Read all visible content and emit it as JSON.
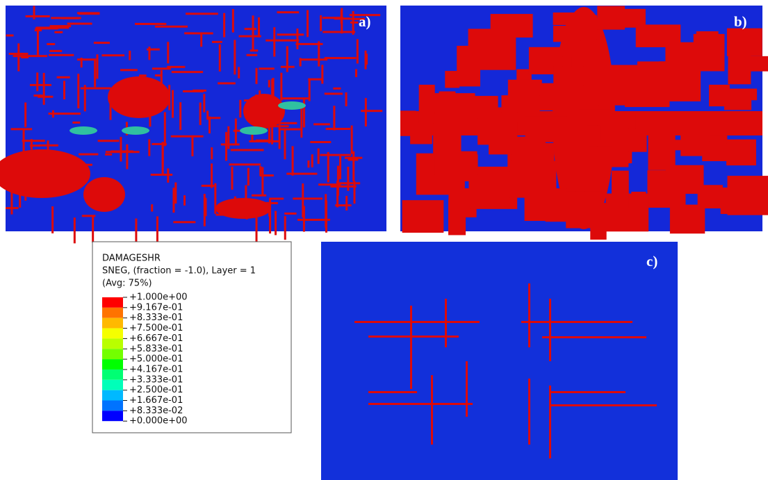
{
  "panels": {
    "a": {
      "label": "a)"
    },
    "b": {
      "label": "b)"
    },
    "c": {
      "label": "c)"
    }
  },
  "legend": {
    "title": "DAMAGESHR",
    "subtitle": "SNEG, (fraction = -1.0), Layer = 1",
    "average": "(Avg: 75%)",
    "labels": [
      "+1.000e+00",
      "+9.167e-01",
      "+8.333e-01",
      "+7.500e-01",
      "+6.667e-01",
      "+5.833e-01",
      "+5.000e-01",
      "+4.167e-01",
      "+3.333e-01",
      "+2.500e-01",
      "+1.667e-01",
      "+8.333e-02",
      "+0.000e+00"
    ],
    "colors": [
      "#ff0000",
      "#ff7300",
      "#ffb900",
      "#f5ff00",
      "#b9ff00",
      "#73ff00",
      "#00ff00",
      "#00ff73",
      "#00ffb9",
      "#00b9ff",
      "#0073ff",
      "#0000ff"
    ]
  }
}
